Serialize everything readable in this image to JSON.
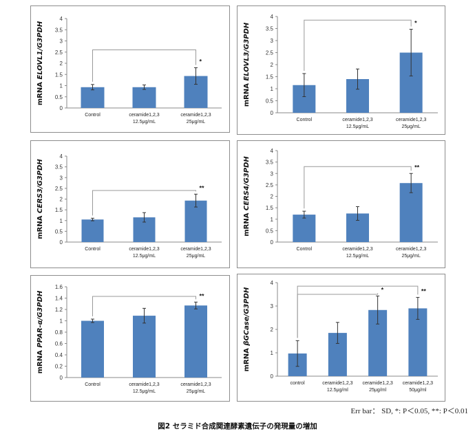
{
  "chart_data": [
    {
      "type": "bar",
      "ylabel_prefix": "mRNA ",
      "ylabel_italic": "ELOVL1/G3PDH",
      "ylim": [
        0,
        4
      ],
      "yticks": [
        "0",
        "0.5",
        "1",
        "1.5",
        "2",
        "2.5",
        "3",
        "3.5",
        "4"
      ],
      "categories": [
        [
          "Control"
        ],
        [
          "ceramide1,2,3",
          "12.5μg/mL"
        ],
        [
          "ceramide1,2,3",
          "25μg/mL"
        ]
      ],
      "values": [
        0.93,
        0.93,
        1.43
      ],
      "errors": [
        0.12,
        0.1,
        0.37
      ],
      "significance": [
        {
          "from": 0,
          "to": 2,
          "mark": "*",
          "bracket_y": 2.6
        }
      ]
    },
    {
      "type": "bar",
      "ylabel_prefix": "mRNA ",
      "ylabel_italic": "ELOVL3/G3PDH",
      "ylim": [
        0,
        4
      ],
      "yticks": [
        "0",
        "0.5",
        "1",
        "1.5",
        "2",
        "2.5",
        "3",
        "3.5",
        "4"
      ],
      "categories": [
        [
          "Control"
        ],
        [
          "ceramide1,2,3",
          "12.5μg/mL"
        ],
        [
          "ceramide1,2,3",
          "25μg/mL"
        ]
      ],
      "values": [
        1.15,
        1.4,
        2.5
      ],
      "errors": [
        0.48,
        0.42,
        0.97
      ],
      "significance": [
        {
          "from": 0,
          "to": 2,
          "mark": "*",
          "bracket_y": 3.85
        }
      ]
    },
    {
      "type": "bar",
      "ylabel_prefix": "mRNA ",
      "ylabel_italic": "CERS3/G3PDH",
      "ylim": [
        0,
        4
      ],
      "yticks": [
        "0",
        "0.5",
        "1",
        "1.5",
        "2",
        "2.5",
        "3",
        "3.5",
        "4"
      ],
      "categories": [
        [
          "Control"
        ],
        [
          "ceramide1,2,3",
          "12.5μg/mL"
        ],
        [
          "ceramide1,2,3",
          "25μg/mL"
        ]
      ],
      "values": [
        1.05,
        1.15,
        1.93
      ],
      "errors": [
        0.06,
        0.22,
        0.3
      ],
      "significance": [
        {
          "from": 0,
          "to": 2,
          "mark": "**",
          "bracket_y": 2.4
        }
      ]
    },
    {
      "type": "bar",
      "ylabel_prefix": "mRNA ",
      "ylabel_italic": "CERS4/G3PDH",
      "ylim": [
        0,
        4
      ],
      "yticks": [
        "0",
        "0.5",
        "1",
        "1.5",
        "2",
        "2.5",
        "3",
        "3.5",
        "4"
      ],
      "categories": [
        [
          "Control"
        ],
        [
          "ceramide1,2,3",
          "12.5μg/mL"
        ],
        [
          "ceramide1,2,3",
          "25μg/mL"
        ]
      ],
      "values": [
        1.2,
        1.25,
        2.58
      ],
      "errors": [
        0.15,
        0.3,
        0.42
      ],
      "significance": [
        {
          "from": 0,
          "to": 2,
          "mark": "**",
          "bracket_y": 3.3
        }
      ]
    },
    {
      "type": "bar",
      "ylabel_prefix": "mRNA ",
      "ylabel_italic": "PPAR-α/G3PDH",
      "ylim": [
        0,
        1.6
      ],
      "yticks": [
        "0",
        "0.2",
        "0.4",
        "0.6",
        "0.8",
        "1",
        "1.2",
        "1.4",
        "1.6"
      ],
      "categories": [
        [
          "Control"
        ],
        [
          "ceramide1,2,3",
          "12.5μg/mL"
        ],
        [
          "ceramide1,2,3",
          "25μg/mL"
        ]
      ],
      "values": [
        1.0,
        1.09,
        1.27
      ],
      "errors": [
        0.03,
        0.13,
        0.06
      ],
      "significance": [
        {
          "from": 0,
          "to": 2,
          "mark": "**",
          "bracket_y": 1.43
        }
      ]
    },
    {
      "type": "bar",
      "ylabel_prefix": "mRNA ",
      "ylabel_italic": "βGCase/G3PDH",
      "ylim": [
        0,
        4
      ],
      "yticks": [
        "0",
        "1",
        "2",
        "3",
        "4"
      ],
      "categories": [
        [
          "control"
        ],
        [
          "ceramide1,2,3",
          "12.5μg/ml"
        ],
        [
          "ceramide1,2,3",
          "25μg/ml"
        ],
        [
          "ceramide1,2,3",
          "50μg/ml"
        ]
      ],
      "values": [
        0.97,
        1.85,
        2.83,
        2.9
      ],
      "errors": [
        0.55,
        0.45,
        0.6,
        0.47
      ],
      "significance": [
        {
          "from": 0,
          "to": 2,
          "mark": "*",
          "bracket_y": 3.5
        },
        {
          "from": 0,
          "to": 3,
          "mark": "**",
          "bracket_y": 3.85
        }
      ]
    }
  ],
  "bar_color": "#4f81bd",
  "error_note": "Err bar： SD, *: P＜0.05, **: P＜0.01",
  "caption": "図2 セラミド合成関連酵素遺伝子の発現量の増加"
}
